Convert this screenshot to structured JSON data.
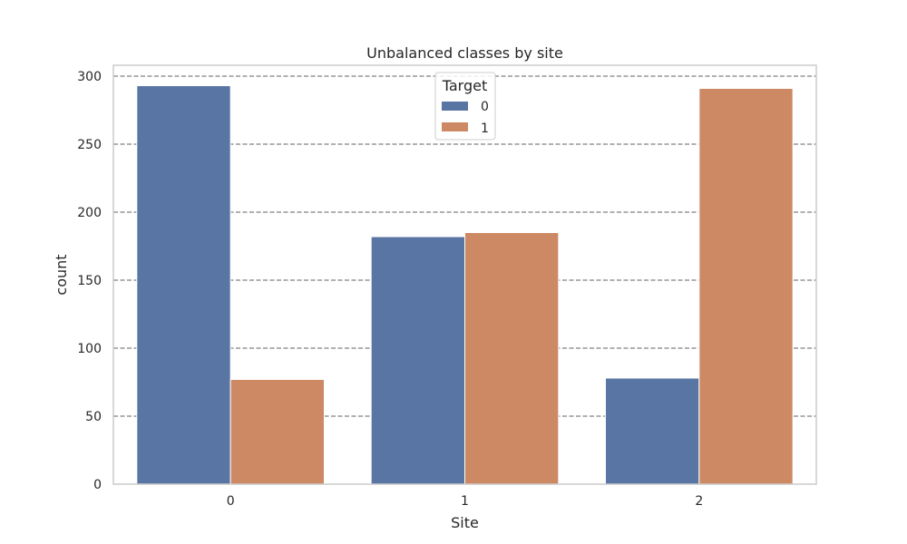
{
  "chart_data": {
    "type": "bar",
    "title": "Unbalanced classes by site",
    "xlabel": "Site",
    "ylabel": "count",
    "categories": [
      "0",
      "1",
      "2"
    ],
    "series": [
      {
        "name": "0",
        "values": [
          293,
          182,
          78
        ],
        "color": "#5975a4"
      },
      {
        "name": "1",
        "values": [
          77,
          185,
          291
        ],
        "color": "#cc8963"
      }
    ],
    "ylim": [
      0,
      308
    ],
    "yticks": [
      0,
      50,
      100,
      150,
      200,
      250,
      300
    ],
    "grid": true,
    "legend": {
      "title": "Target",
      "placement": "top-center"
    }
  }
}
